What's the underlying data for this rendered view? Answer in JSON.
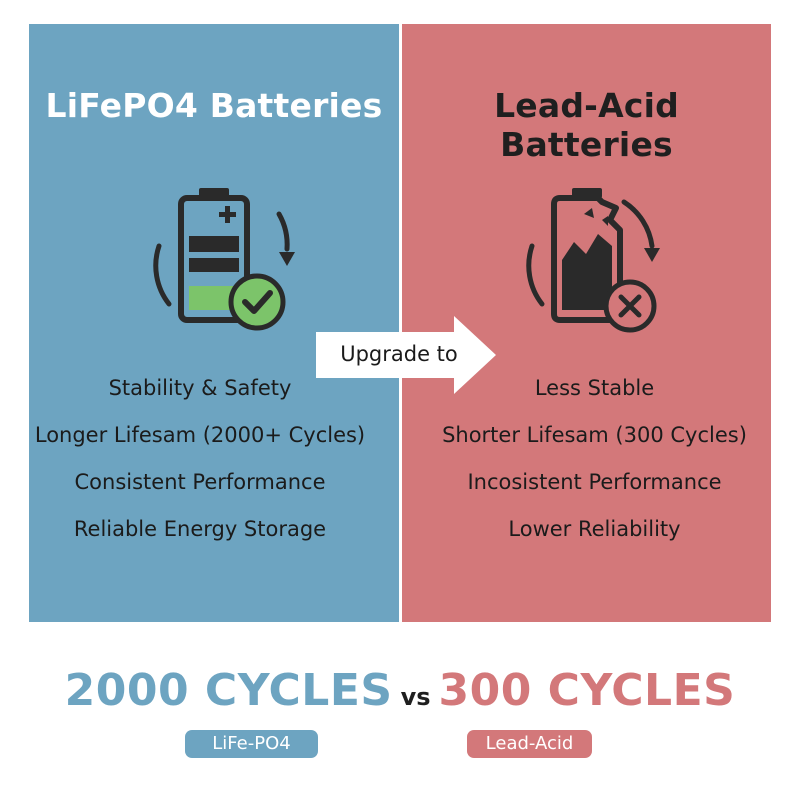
{
  "left_panel": {
    "title": "LiFePO4 Batteries",
    "features": [
      "Stability & Safety",
      "Longer Lifesam (2000+ Cycles)",
      "Consistent Performance",
      "Reliable Energy Storage"
    ],
    "icon": "battery-charged-check-icon",
    "color": "#6da4c1"
  },
  "right_panel": {
    "title": "Lead-Acid Batteries",
    "features": [
      "Less Stable",
      "Shorter Lifesam (300 Cycles)",
      "Incosistent Performance",
      "Lower Reliability"
    ],
    "icon": "battery-broken-x-icon",
    "color": "#d3787a"
  },
  "arrow": {
    "label": "Upgrade to"
  },
  "summary": {
    "left_value": "2000 CYCLES",
    "vs": "vs",
    "right_value": "300 CYCLES",
    "left_tag": "LiFe-PO4",
    "right_tag": "Lead-Acid"
  }
}
